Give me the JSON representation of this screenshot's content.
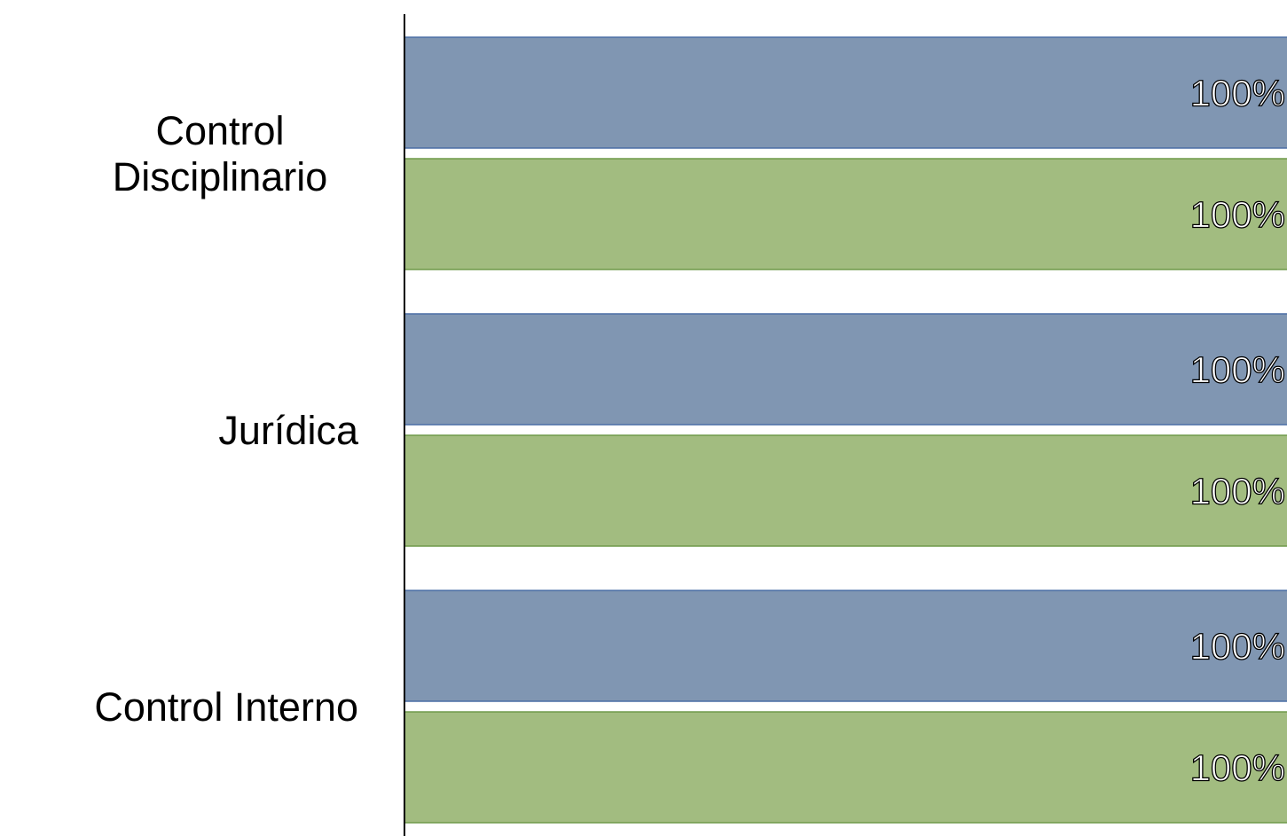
{
  "chart_data": {
    "type": "bar",
    "orientation": "horizontal",
    "categories": [
      "Control Disciplinario",
      "Jurídica",
      "Control Interno"
    ],
    "category_lines": [
      [
        "Control",
        "Disciplinario"
      ],
      [
        "Jurídica"
      ],
      [
        "Control Interno"
      ]
    ],
    "series": [
      {
        "values": [
          100,
          100,
          100
        ],
        "data_labels": [
          "100%",
          "100%",
          "100%"
        ],
        "color": "#8096b2"
      },
      {
        "values": [
          100,
          100,
          100
        ],
        "data_labels": [
          "100%",
          "100%",
          "100%"
        ],
        "color": "#a2bc80"
      }
    ],
    "xlim": [
      0,
      100
    ],
    "unit": "%",
    "grid": false,
    "legend": "none",
    "colors": {
      "series_1_border": "#4a6fa5",
      "series_2_border": "#6f9a4a",
      "axis": "#000000"
    }
  }
}
